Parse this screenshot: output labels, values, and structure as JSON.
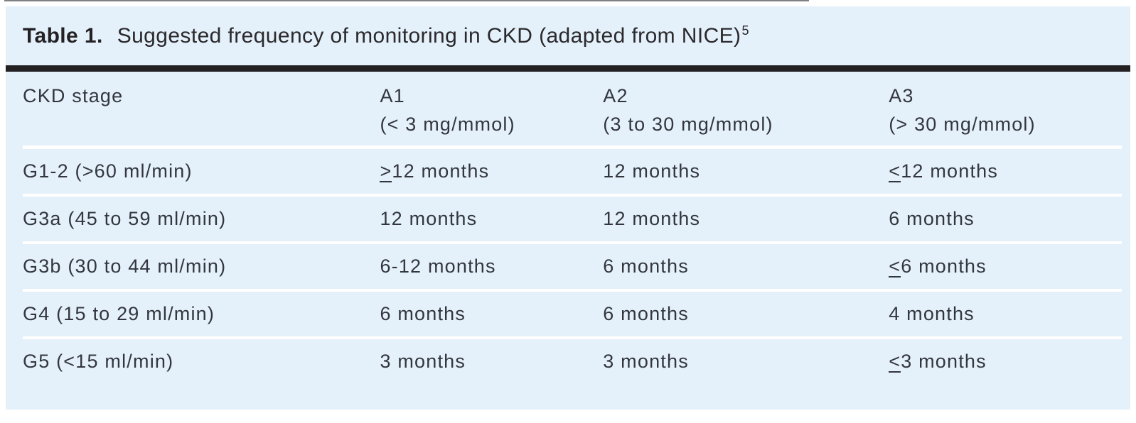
{
  "title": {
    "label": "Table 1.",
    "text": "Suggested frequency of monitoring in CKD (adapted from NICE)",
    "reference": "5"
  },
  "colors": {
    "panel_bg": "#e4f1fb",
    "heavy_rule": "#232024",
    "row_divider": "#ffffff",
    "text": "#33363e",
    "title_text": "#232124"
  },
  "table": {
    "columns": [
      {
        "id": "stage",
        "lines": [
          "CKD stage"
        ],
        "width_pct": 32.5
      },
      {
        "id": "a1",
        "lines": [
          "A1",
          "(< 3 mg/mmol)"
        ],
        "width_pct": 20.3
      },
      {
        "id": "a2",
        "lines": [
          "A2",
          "(3 to 30 mg/mmol)"
        ],
        "width_pct": 26.0
      },
      {
        "id": "a3",
        "lines": [
          "A3",
          "(> 30 mg/mmol)"
        ],
        "width_pct": 21.2
      }
    ],
    "rows": [
      {
        "stage": "G1-2 (>60 ml/min)",
        "a1": "≥12 months",
        "a2": "12 months",
        "a3": "≤12 months"
      },
      {
        "stage": "G3a (45 to 59 ml/min)",
        "a1": "12 months",
        "a2": "12 months",
        "a3": "6 months"
      },
      {
        "stage": "G3b (30 to 44 ml/min)",
        "a1": "6-12 months",
        "a2": "6 months",
        "a3": "≤6 months"
      },
      {
        "stage": "G4 (15 to 29 ml/min)",
        "a1": "6 months",
        "a2": "6 months",
        "a3": "4 months"
      },
      {
        "stage": "G5 (<15 ml/min)",
        "a1": "3 months",
        "a2": "3 months",
        "a3": "≤3 months"
      }
    ]
  }
}
